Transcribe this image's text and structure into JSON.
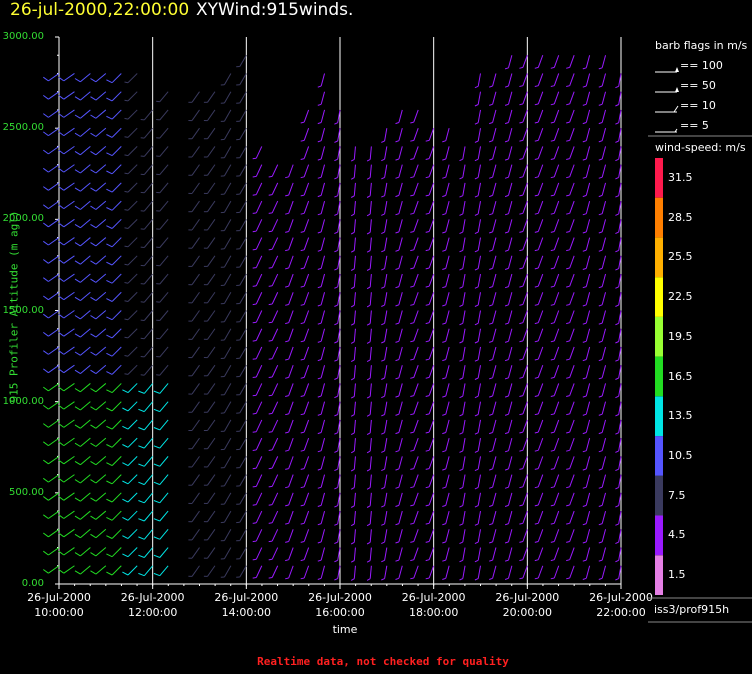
{
  "title": {
    "date": "26-jul-2000,22:00:00",
    "product": "XYWind:915winds."
  },
  "chart_data": {
    "type": "wind-barb",
    "ylabel": "915 Profiler Altitude (m agl)",
    "xlabel": "time",
    "ylim": [
      0,
      3000
    ],
    "y_ticks": [
      "0.00",
      "500.00",
      "1000.00",
      "1500.00",
      "2000.00",
      "2500.00",
      "3000.00"
    ],
    "x_range_hours": [
      10,
      22
    ],
    "x_ticks": [
      {
        "date": "26-Jul-2000",
        "time": "10:00:00",
        "hour": 10
      },
      {
        "date": "26-Jul-2000",
        "time": "12:00:00",
        "hour": 12
      },
      {
        "date": "26-Jul-2000",
        "time": "14:00:00",
        "hour": 14
      },
      {
        "date": "26-Jul-2000",
        "time": "16:00:00",
        "hour": 16
      },
      {
        "date": "26-Jul-2000",
        "time": "18:00:00",
        "hour": 18
      },
      {
        "date": "26-Jul-2000",
        "time": "20:00:00",
        "hour": 20
      },
      {
        "date": "26-Jul-2000",
        "time": "22:00:00",
        "hour": 22
      }
    ],
    "profiles": [
      {
        "hour": 10.0,
        "ymax": 2850,
        "dir": 235,
        "spd": 10.5
      },
      {
        "hour": 10.33,
        "ymax": 2850,
        "dir": 235,
        "spd": 10.5
      },
      {
        "hour": 10.67,
        "ymax": 2850,
        "dir": 230,
        "spd": 10.5
      },
      {
        "hour": 11.0,
        "ymax": 2850,
        "dir": 230,
        "spd": 10.5
      },
      {
        "hour": 11.33,
        "ymax": 2850,
        "dir": 225,
        "spd": 10.5
      },
      {
        "hour": 11.67,
        "ymax": 2850,
        "dir": 225,
        "spd": 7.5
      },
      {
        "hour": 12.0,
        "ymax": 2650,
        "dir": 220,
        "spd": 7.5
      },
      {
        "hour": 12.33,
        "ymax": 2700,
        "dir": 220,
        "spd": 7.5
      },
      {
        "hour": 13.0,
        "ymax": 2700,
        "dir": 215,
        "spd": 7.5
      },
      {
        "hour": 13.33,
        "ymax": 2750,
        "dir": 215,
        "spd": 7.5
      },
      {
        "hour": 13.67,
        "ymax": 2850,
        "dir": 210,
        "spd": 7.5
      },
      {
        "hour": 14.0,
        "ymax": 2950,
        "dir": 210,
        "spd": 7.5
      },
      {
        "hour": 14.33,
        "ymax": 2400,
        "dir": 205,
        "spd": 4.5
      },
      {
        "hour": 14.67,
        "ymax": 2300,
        "dir": 205,
        "spd": 4.5
      },
      {
        "hour": 15.0,
        "ymax": 2300,
        "dir": 200,
        "spd": 4.5
      },
      {
        "hour": 15.33,
        "ymax": 2650,
        "dir": 200,
        "spd": 4.5
      },
      {
        "hour": 15.67,
        "ymax": 2800,
        "dir": 195,
        "spd": 4.5
      },
      {
        "hour": 16.0,
        "ymax": 2600,
        "dir": 190,
        "spd": 4.5
      },
      {
        "hour": 16.33,
        "ymax": 2400,
        "dir": 185,
        "spd": 4.5
      },
      {
        "hour": 16.67,
        "ymax": 2400,
        "dir": 185,
        "spd": 4.5
      },
      {
        "hour": 17.0,
        "ymax": 2550,
        "dir": 190,
        "spd": 4.5
      },
      {
        "hour": 17.33,
        "ymax": 2650,
        "dir": 195,
        "spd": 4.5
      },
      {
        "hour": 17.67,
        "ymax": 2600,
        "dir": 200,
        "spd": 4.5
      },
      {
        "hour": 18.0,
        "ymax": 2500,
        "dir": 200,
        "spd": 4.5
      },
      {
        "hour": 18.33,
        "ymax": 2500,
        "dir": 195,
        "spd": 4.5
      },
      {
        "hour": 18.67,
        "ymax": 2400,
        "dir": 190,
        "spd": 4.5
      },
      {
        "hour": 19.0,
        "ymax": 2850,
        "dir": 190,
        "spd": 4.5
      },
      {
        "hour": 19.33,
        "ymax": 2850,
        "dir": 195,
        "spd": 4.5
      },
      {
        "hour": 19.67,
        "ymax": 2950,
        "dir": 195,
        "spd": 4.5
      },
      {
        "hour": 20.0,
        "ymax": 2950,
        "dir": 200,
        "spd": 4.5
      },
      {
        "hour": 20.33,
        "ymax": 2950,
        "dir": 200,
        "spd": 4.5
      },
      {
        "hour": 20.67,
        "ymax": 2950,
        "dir": 200,
        "spd": 4.5
      },
      {
        "hour": 21.0,
        "ymax": 2950,
        "dir": 200,
        "spd": 4.5
      },
      {
        "hour": 21.33,
        "ymax": 2900,
        "dir": 195,
        "spd": 4.5
      },
      {
        "hour": 21.67,
        "ymax": 2900,
        "dir": 195,
        "spd": 4.5
      },
      {
        "hour": 22.0,
        "ymax": 2850,
        "dir": 190,
        "spd": 4.5
      }
    ],
    "legend": {
      "barb_title": "barb flags in m/s",
      "barbs": [
        {
          "label": "== 100",
          "kind": "pennant2"
        },
        {
          "label": "== 50",
          "kind": "pennant"
        },
        {
          "label": "== 10",
          "kind": "full"
        },
        {
          "label": "== 5",
          "kind": "half"
        }
      ],
      "colorbar_title": "wind-speed: m/s",
      "colorbar": [
        {
          "label": "31.5",
          "color": "#ff1a4d"
        },
        {
          "label": "28.5",
          "color": "#ff7f00"
        },
        {
          "label": "25.5",
          "color": "#ffb000"
        },
        {
          "label": "22.5",
          "color": "#ffff00"
        },
        {
          "label": "19.5",
          "color": "#99ff33"
        },
        {
          "label": "16.5",
          "color": "#22dd22"
        },
        {
          "label": "13.5",
          "color": "#00e5e5"
        },
        {
          "label": "10.5",
          "color": "#5555ff"
        },
        {
          "label": "7.5",
          "color": "#3a3a5e"
        },
        {
          "label": "4.5",
          "color": "#9a1aff"
        },
        {
          "label": "1.5",
          "color": "#e57fe5"
        }
      ]
    }
  },
  "station": "iss3/prof915h",
  "footer": "Realtime data, not checked for quality"
}
